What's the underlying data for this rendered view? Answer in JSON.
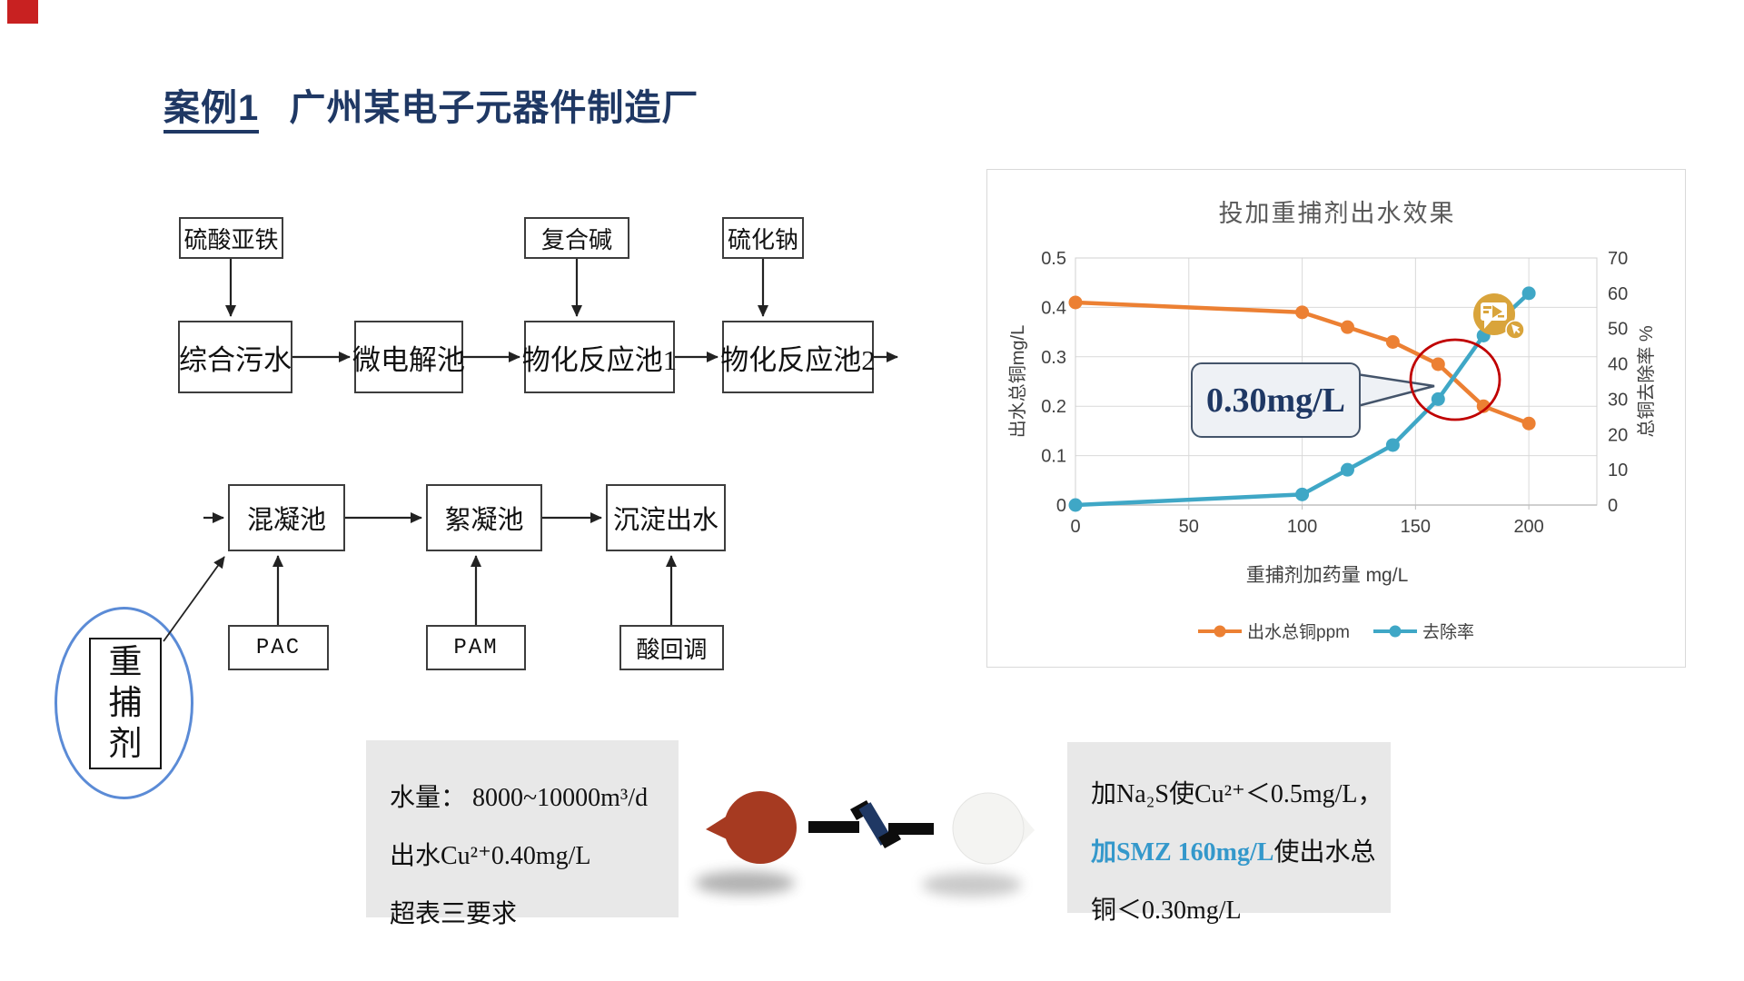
{
  "corner_marker": {
    "color": "#c82121"
  },
  "title": {
    "part_underlined": "案例1",
    "part_rest": "广州某电子元器件制造厂",
    "color": "#1F3864"
  },
  "flow_diagram": {
    "top_feed_boxes": [
      {
        "label": "硫酸亚铁"
      },
      {
        "label": "复合碱"
      },
      {
        "label": "硫化钠"
      }
    ],
    "main_boxes": [
      {
        "label": "综合污水"
      },
      {
        "label": "微电解池"
      },
      {
        "label": "物化反应池1"
      },
      {
        "label": "物化反应池2"
      }
    ],
    "stage2_boxes": [
      {
        "label": "混凝池"
      },
      {
        "label": "絮凝池"
      },
      {
        "label": "沉淀出水"
      }
    ],
    "bottom_feed_boxes": [
      {
        "label": "PAC"
      },
      {
        "label": "PAM"
      },
      {
        "label": "酸回调"
      }
    ],
    "agent_bubble": {
      "chars": [
        "重",
        "捕",
        "剂"
      ],
      "ellipse_color": "#5B8BD6"
    }
  },
  "chart_data": {
    "type": "line",
    "title": "投加重捕剂出水效果",
    "xlabel": "重捕剂加药量 mg/L",
    "ylabel_left": "出水总铜mg/L",
    "ylabel_right": "总铜去除率 %",
    "x_ticks": [
      0,
      50,
      100,
      150,
      200
    ],
    "xlim": [
      0,
      230
    ],
    "ylim_left": [
      0,
      0.5
    ],
    "ylim_right": [
      0,
      70
    ],
    "y_ticks_left": [
      0,
      0.1,
      0.2,
      0.3,
      0.4,
      0.5
    ],
    "y_ticks_right": [
      0,
      10,
      20,
      30,
      40,
      50,
      60,
      70
    ],
    "grid": true,
    "legend_position": "bottom",
    "series": [
      {
        "name": "出水总铜ppm",
        "axis": "left",
        "color": "#EC8033",
        "x": [
          0,
          100,
          120,
          140,
          160,
          180,
          200
        ],
        "values": [
          0.41,
          0.39,
          0.36,
          0.33,
          0.285,
          0.2,
          0.165
        ]
      },
      {
        "name": "去除率",
        "axis": "right",
        "color": "#3FA7C6",
        "x": [
          0,
          100,
          120,
          140,
          160,
          180,
          200
        ],
        "values": [
          0,
          3,
          10,
          17,
          30,
          48,
          60
        ]
      }
    ],
    "annotation": {
      "callout_text": "0.30mg/L",
      "circle_color": "#C00000"
    }
  },
  "media_icon": {
    "color": "#D9A43B"
  },
  "notes_left": {
    "lines": [
      "水量： 8000~10000m³/d",
      "出水Cu²⁺0.40mg/L",
      "超表三要求"
    ]
  },
  "notes_right": {
    "line1": "加Na₂S使Cu²⁺＜0.5mg/L，",
    "line2_highlight": "加SMZ 160mg/L",
    "line2_rest": "使出水总",
    "line3": "铜＜0.30mg/L",
    "highlight_color": "#3498CB"
  },
  "transition_graphic": {
    "left_balloon_color": "#A63A21",
    "right_balloon_color": "#F4F4F2",
    "break_color": "#1F3864"
  }
}
